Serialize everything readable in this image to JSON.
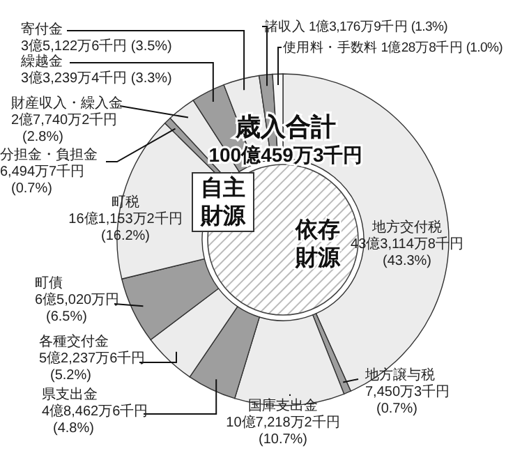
{
  "chart_data": {
    "type": "donut",
    "title": "歳入合計",
    "subtitle": "100億459万3千円",
    "annotations": [
      "自主財源",
      "依存財源"
    ],
    "categories": [
      "地方交付税",
      "地方譲与税",
      "国庫支出金",
      "県支出金",
      "各種交付金",
      "町債",
      "町税",
      "分担金・負担金",
      "財産収入・繰入金",
      "繰越金",
      "寄付金",
      "諸収入",
      "使用料・手数料"
    ],
    "values": [
      43.3,
      0.7,
      10.7,
      4.8,
      5.2,
      6.5,
      16.2,
      0.7,
      2.8,
      3.3,
      3.5,
      1.3,
      1.0
    ],
    "colors": [
      "#ececec",
      "#9e9e9e",
      "#ececec",
      "#9e9e9e",
      "#ececec",
      "#9e9e9e",
      "#ececec",
      "#9e9e9e",
      "#ececec",
      "#9e9e9e",
      "#ececec",
      "#9e9e9e",
      "#f8f8f8"
    ],
    "value_labels": [
      "43億3,114万8千円 (43.3%)",
      "7,450万3千円 (0.7%)",
      "10億7,218万2千円 (10.7%)",
      "4億8,462万6千円 (4.8%)",
      "5億2,237万6千円 (5.2%)",
      "6億5,020万円 (6.5%)",
      "16億1,153万2千円 (16.2%)",
      "6,494万7千円 (0.7%)",
      "2億7,740万2千円 (2.8%)",
      "3億3,239万4千円 (3.3%)",
      "3億5,122万6千円 (3.5%)",
      "1億3,176万9千円 (1.3%)",
      "1億28万8千円 (1.0%)"
    ]
  }
}
